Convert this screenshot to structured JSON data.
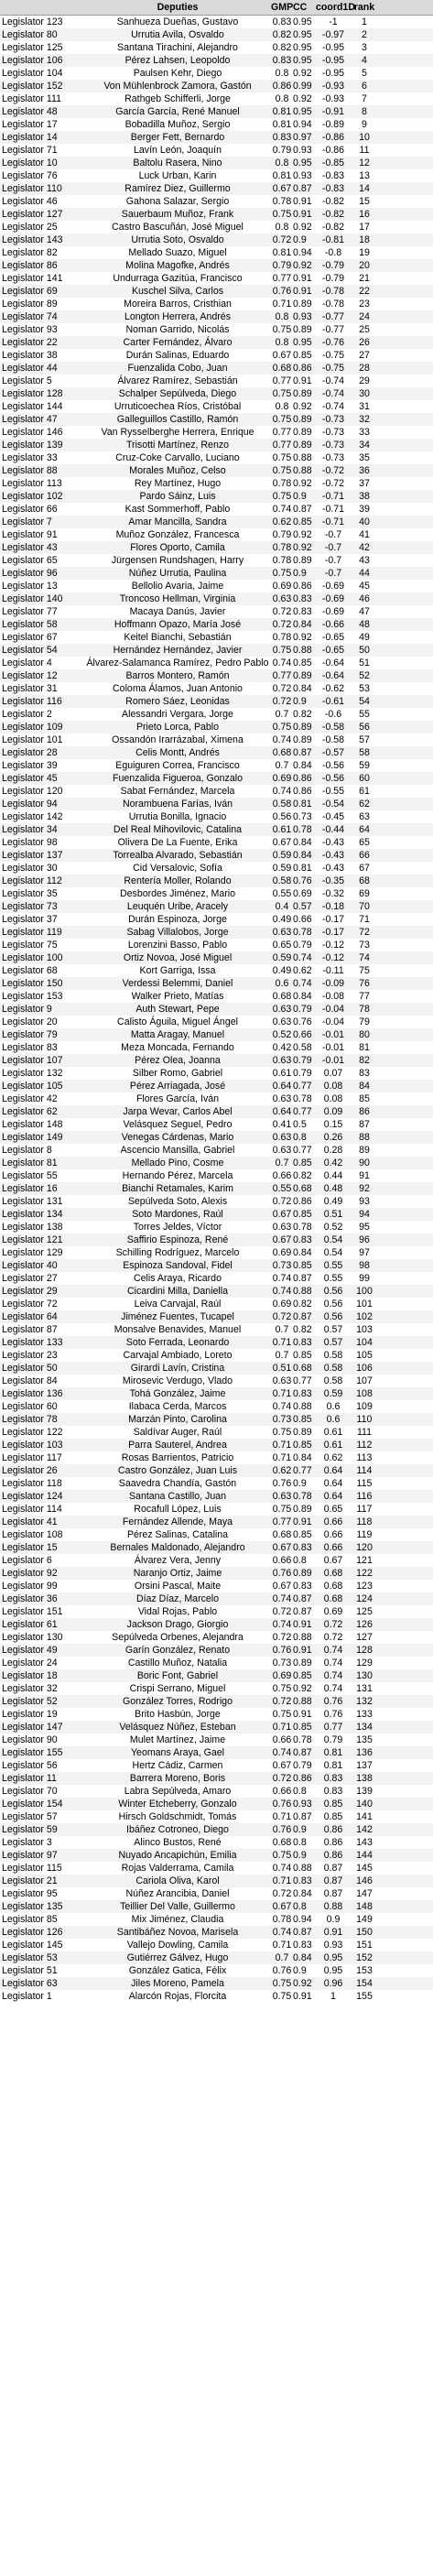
{
  "columns": [
    "",
    "Deputies",
    "GMP",
    "CC",
    "coord1D",
    "rank"
  ],
  "rows": [
    [
      "Legislator 123",
      "Sanhueza Dueñas, Gustavo",
      "0.83",
      "0.95",
      "-1",
      "1"
    ],
    [
      "Legislator 80",
      "Urrutia Avila, Osvaldo",
      "0.82",
      "0.95",
      "-0.97",
      "2"
    ],
    [
      "Legislator 125",
      "Santana Tirachini, Alejandro",
      "0.82",
      "0.95",
      "-0.95",
      "3"
    ],
    [
      "Legislator 106",
      "Pérez Lahsen, Leopoldo",
      "0.83",
      "0.95",
      "-0.95",
      "4"
    ],
    [
      "Legislator 104",
      "Paulsen Kehr, Diego",
      "0.8",
      "0.92",
      "-0.95",
      "5"
    ],
    [
      "Legislator 152",
      "Von Mühlenbrock Zamora, Gastón",
      "0.86",
      "0.99",
      "-0.93",
      "6"
    ],
    [
      "Legislator 111",
      "Rathgeb Schifferli, Jorge",
      "0.8",
      "0.92",
      "-0.93",
      "7"
    ],
    [
      "Legislator 48",
      "García García, René Manuel",
      "0.81",
      "0.95",
      "-0.91",
      "8"
    ],
    [
      "Legislator 17",
      "Bobadilla Muñoz, Sergio",
      "0.81",
      "0.94",
      "-0.89",
      "9"
    ],
    [
      "Legislator 14",
      "Berger Fett, Bernardo",
      "0.83",
      "0.97",
      "-0.86",
      "10"
    ],
    [
      "Legislator 71",
      "Lavín León, Joaquín",
      "0.79",
      "0.93",
      "-0.86",
      "11"
    ],
    [
      "Legislator 10",
      "Baltolu Rasera, Nino",
      "0.8",
      "0.95",
      "-0.85",
      "12"
    ],
    [
      "Legislator 76",
      "Luck Urban, Karin",
      "0.81",
      "0.93",
      "-0.83",
      "13"
    ],
    [
      "Legislator 110",
      "Ramírez Diez, Guillermo",
      "0.67",
      "0.87",
      "-0.83",
      "14"
    ],
    [
      "Legislator 46",
      "Gahona Salazar, Sergio",
      "0.78",
      "0.91",
      "-0.82",
      "15"
    ],
    [
      "Legislator 127",
      "Sauerbaum Muñoz, Frank",
      "0.75",
      "0.91",
      "-0.82",
      "16"
    ],
    [
      "Legislator 25",
      "Castro Bascuñán, José Miguel",
      "0.8",
      "0.92",
      "-0.82",
      "17"
    ],
    [
      "Legislator 143",
      "Urrutia Soto, Osvaldo",
      "0.72",
      "0.9",
      "-0.81",
      "18"
    ],
    [
      "Legislator 82",
      "Mellado Suazo, Miguel",
      "0.81",
      "0.94",
      "-0.8",
      "19"
    ],
    [
      "Legislator 86",
      "Molina Magofke, Andrés",
      "0.79",
      "0.92",
      "-0.79",
      "20"
    ],
    [
      "Legislator 141",
      "Undurraga Gazitúa, Francisco",
      "0.77",
      "0.91",
      "-0.79",
      "21"
    ],
    [
      "Legislator 69",
      "Kuschel Silva, Carlos",
      "0.76",
      "0.91",
      "-0.78",
      "22"
    ],
    [
      "Legislator 89",
      "Moreira Barros, Cristhian",
      "0.71",
      "0.89",
      "-0.78",
      "23"
    ],
    [
      "Legislator 74",
      "Longton Herrera, Andrés",
      "0.8",
      "0.93",
      "-0.77",
      "24"
    ],
    [
      "Legislator 93",
      "Noman Garrido, Nicolás",
      "0.75",
      "0.89",
      "-0.77",
      "25"
    ],
    [
      "Legislator 22",
      "Carter Fernández, Álvaro",
      "0.8",
      "0.95",
      "-0.76",
      "26"
    ],
    [
      "Legislator 38",
      "Durán Salinas, Eduardo",
      "0.67",
      "0.85",
      "-0.75",
      "27"
    ],
    [
      "Legislator 44",
      "Fuenzalida Cobo, Juan",
      "0.68",
      "0.86",
      "-0.75",
      "28"
    ],
    [
      "Legislator 5",
      "Álvarez Ramírez, Sebastián",
      "0.77",
      "0.91",
      "-0.74",
      "29"
    ],
    [
      "Legislator 128",
      "Schalper Sepúlveda, Diego",
      "0.75",
      "0.89",
      "-0.74",
      "30"
    ],
    [
      "Legislator 144",
      "Urruticoechea Ríos, Cristóbal",
      "0.8",
      "0.92",
      "-0.74",
      "31"
    ],
    [
      "Legislator 47",
      "Galleguillos Castillo, Ramón",
      "0.75",
      "0.89",
      "-0.73",
      "32"
    ],
    [
      "Legislator 146",
      "Van Rysselberghe Herrera, Enrique",
      "0.77",
      "0.89",
      "-0.73",
      "33"
    ],
    [
      "Legislator 139",
      "Trisotti Martínez, Renzo",
      "0.77",
      "0.89",
      "-0.73",
      "34"
    ],
    [
      "Legislator 33",
      "Cruz-Coke Carvallo, Luciano",
      "0.75",
      "0.88",
      "-0.73",
      "35"
    ],
    [
      "Legislator 88",
      "Morales Muñoz, Celso",
      "0.75",
      "0.88",
      "-0.72",
      "36"
    ],
    [
      "Legislator 113",
      "Rey Martínez, Hugo",
      "0.78",
      "0.92",
      "-0.72",
      "37"
    ],
    [
      "Legislator 102",
      "Pardo Sáinz, Luis",
      "0.75",
      "0.9",
      "-0.71",
      "38"
    ],
    [
      "Legislator 66",
      "Kast Sommerhoff, Pablo",
      "0.74",
      "0.87",
      "-0.71",
      "39"
    ],
    [
      "Legislator 7",
      "Amar Mancilla, Sandra",
      "0.62",
      "0.85",
      "-0.71",
      "40"
    ],
    [
      "Legislator 91",
      "Muñoz González, Francesca",
      "0.79",
      "0.92",
      "-0.7",
      "41"
    ],
    [
      "Legislator 43",
      "Flores Oporto, Camila",
      "0.78",
      "0.92",
      "-0.7",
      "42"
    ],
    [
      "Legislator 65",
      "Jürgensen Rundshagen, Harry",
      "0.78",
      "0.89",
      "-0.7",
      "43"
    ],
    [
      "Legislator 96",
      "Núñez Urrutia, Paulina",
      "0.75",
      "0.9",
      "-0.7",
      "44"
    ],
    [
      "Legislator 13",
      "Bellolio Avaria, Jaime",
      "0.69",
      "0.86",
      "-0.69",
      "45"
    ],
    [
      "Legislator 140",
      "Troncoso Hellman, Virginia",
      "0.63",
      "0.83",
      "-0.69",
      "46"
    ],
    [
      "Legislator 77",
      "Macaya Danús, Javier",
      "0.72",
      "0.83",
      "-0.69",
      "47"
    ],
    [
      "Legislator 58",
      "Hoffmann Opazo, María José",
      "0.72",
      "0.84",
      "-0.66",
      "48"
    ],
    [
      "Legislator 67",
      "Keitel Bianchi, Sebastián",
      "0.78",
      "0.92",
      "-0.65",
      "49"
    ],
    [
      "Legislator 54",
      "Hernández Hernández, Javier",
      "0.75",
      "0.88",
      "-0.65",
      "50"
    ],
    [
      "Legislator 4",
      "Álvarez-Salamanca Ramírez, Pedro Pablo",
      "0.74",
      "0.85",
      "-0.64",
      "51"
    ],
    [
      "Legislator 12",
      "Barros Montero, Ramón",
      "0.77",
      "0.89",
      "-0.64",
      "52"
    ],
    [
      "Legislator 31",
      "Coloma Álamos, Juan Antonio",
      "0.72",
      "0.84",
      "-0.62",
      "53"
    ],
    [
      "Legislator 116",
      "Romero Sáez, Leonidas",
      "0.72",
      "0.9",
      "-0.61",
      "54"
    ],
    [
      "Legislator 2",
      "Alessandri Vergara, Jorge",
      "0.7",
      "0.82",
      "-0.6",
      "55"
    ],
    [
      "Legislator 109",
      "Prieto Lorca, Pablo",
      "0.75",
      "0.89",
      "-0.58",
      "56"
    ],
    [
      "Legislator 101",
      "Ossandón Irarrázabal, Ximena",
      "0.74",
      "0.89",
      "-0.58",
      "57"
    ],
    [
      "Legislator 28",
      "Celis Montt, Andrés",
      "0.68",
      "0.87",
      "-0.57",
      "58"
    ],
    [
      "Legislator 39",
      "Eguiguren Correa, Francisco",
      "0.7",
      "0.84",
      "-0.56",
      "59"
    ],
    [
      "Legislator 45",
      "Fuenzalida Figueroa, Gonzalo",
      "0.69",
      "0.86",
      "-0.56",
      "60"
    ],
    [
      "Legislator 120",
      "Sabat Fernández, Marcela",
      "0.74",
      "0.86",
      "-0.55",
      "61"
    ],
    [
      "Legislator 94",
      "Norambuena Farías, Iván",
      "0.58",
      "0.81",
      "-0.54",
      "62"
    ],
    [
      "Legislator 142",
      "Urrutia Bonilla, Ignacio",
      "0.56",
      "0.73",
      "-0.45",
      "63"
    ],
    [
      "Legislator 34",
      "Del Real Mihovilovic, Catalina",
      "0.61",
      "0.78",
      "-0.44",
      "64"
    ],
    [
      "Legislator 98",
      "Olivera De La Fuente, Erika",
      "0.67",
      "0.84",
      "-0.43",
      "65"
    ],
    [
      "Legislator 137",
      "Torrealba Alvarado, Sebastián",
      "0.59",
      "0.84",
      "-0.43",
      "66"
    ],
    [
      "Legislator 30",
      "Cid Versalovic, Sofía",
      "0.59",
      "0.81",
      "-0.43",
      "67"
    ],
    [
      "Legislator 112",
      "Rentería Moller, Rolando",
      "0.58",
      "0.76",
      "-0.35",
      "68"
    ],
    [
      "Legislator 35",
      "Desbordes Jiménez, Mario",
      "0.55",
      "0.69",
      "-0.32",
      "69"
    ],
    [
      "Legislator 73",
      "Leuquén Uribe, Aracely",
      "0.4",
      "0.57",
      "-0.18",
      "70"
    ],
    [
      "Legislator 37",
      "Durán Espinoza, Jorge",
      "0.49",
      "0.66",
      "-0.17",
      "71"
    ],
    [
      "Legislator 119",
      "Sabag Villalobos, Jorge",
      "0.63",
      "0.78",
      "-0.17",
      "72"
    ],
    [
      "Legislator 75",
      "Lorenzini Basso, Pablo",
      "0.65",
      "0.79",
      "-0.12",
      "73"
    ],
    [
      "Legislator 100",
      "Ortiz Novoa, José Miguel",
      "0.59",
      "0.74",
      "-0.12",
      "74"
    ],
    [
      "Legislator 68",
      "Kort Garriga, Issa",
      "0.49",
      "0.62",
      "-0.11",
      "75"
    ],
    [
      "Legislator 150",
      "Verdessi Belemmi, Daniel",
      "0.6",
      "0.74",
      "-0.09",
      "76"
    ],
    [
      "Legislator 153",
      "Walker Prieto, Matías",
      "0.68",
      "0.84",
      "-0.08",
      "77"
    ],
    [
      "Legislator 9",
      "Auth Stewart, Pepe",
      "0.63",
      "0.79",
      "-0.04",
      "78"
    ],
    [
      "Legislator 20",
      "Calisto Águila, Miguel Ángel",
      "0.63",
      "0.76",
      "-0.04",
      "79"
    ],
    [
      "Legislator 79",
      "Matta Aragay, Manuel",
      "0.52",
      "0.66",
      "-0.01",
      "80"
    ],
    [
      "Legislator 83",
      "Meza Moncada, Fernando",
      "0.42",
      "0.58",
      "-0.01",
      "81"
    ],
    [
      "Legislator 107",
      "Pérez Olea, Joanna",
      "0.63",
      "0.79",
      "-0.01",
      "82"
    ],
    [
      "Legislator 132",
      "Silber Romo, Gabriel",
      "0.61",
      "0.79",
      "0.07",
      "83"
    ],
    [
      "Legislator 105",
      "Pérez Arriagada, José",
      "0.64",
      "0.77",
      "0.08",
      "84"
    ],
    [
      "Legislator 42",
      "Flores García, Iván",
      "0.63",
      "0.78",
      "0.08",
      "85"
    ],
    [
      "Legislator 62",
      "Jarpa Wevar, Carlos Abel",
      "0.64",
      "0.77",
      "0.09",
      "86"
    ],
    [
      "Legislator 148",
      "Velásquez Seguel, Pedro",
      "0.41",
      "0.5",
      "0.15",
      "87"
    ],
    [
      "Legislator 149",
      "Venegas Cárdenas, Mario",
      "0.63",
      "0.8",
      "0.26",
      "88"
    ],
    [
      "Legislator 8",
      "Ascencio Mansilla, Gabriel",
      "0.63",
      "0.77",
      "0.28",
      "89"
    ],
    [
      "Legislator 81",
      "Mellado Pino, Cosme",
      "0.7",
      "0.85",
      "0.42",
      "90"
    ],
    [
      "Legislator 55",
      "Hernando Pérez, Marcela",
      "0.66",
      "0.82",
      "0.44",
      "91"
    ],
    [
      "Legislator 16",
      "Bianchi Retamales, Karim",
      "0.55",
      "0.68",
      "0.48",
      "92"
    ],
    [
      "Legislator 131",
      "Sepúlveda Soto, Alexis",
      "0.72",
      "0.86",
      "0.49",
      "93"
    ],
    [
      "Legislator 134",
      "Soto Mardones, Raúl",
      "0.67",
      "0.85",
      "0.51",
      "94"
    ],
    [
      "Legislator 138",
      "Torres Jeldes, Víctor",
      "0.63",
      "0.78",
      "0.52",
      "95"
    ],
    [
      "Legislator 121",
      "Saffirio Espinoza, René",
      "0.67",
      "0.83",
      "0.54",
      "96"
    ],
    [
      "Legislator 129",
      "Schilling Rodríguez, Marcelo",
      "0.69",
      "0.84",
      "0.54",
      "97"
    ],
    [
      "Legislator 40",
      "Espinoza Sandoval, Fidel",
      "0.73",
      "0.85",
      "0.55",
      "98"
    ],
    [
      "Legislator 27",
      "Celis Araya, Ricardo",
      "0.74",
      "0.87",
      "0.55",
      "99"
    ],
    [
      "Legislator 29",
      "Cicardini Milla, Daniella",
      "0.74",
      "0.88",
      "0.56",
      "100"
    ],
    [
      "Legislator 72",
      "Leiva Carvajal, Raúl",
      "0.69",
      "0.82",
      "0.56",
      "101"
    ],
    [
      "Legislator 64",
      "Jiménez Fuentes, Tucapel",
      "0.72",
      "0.87",
      "0.56",
      "102"
    ],
    [
      "Legislator 87",
      "Monsalve Benavides, Manuel",
      "0.7",
      "0.82",
      "0.57",
      "103"
    ],
    [
      "Legislator 133",
      "Soto Ferrada, Leonardo",
      "0.71",
      "0.83",
      "0.57",
      "104"
    ],
    [
      "Legislator 23",
      "Carvajal Ambiado, Loreto",
      "0.7",
      "0.85",
      "0.58",
      "105"
    ],
    [
      "Legislator 50",
      "Girardi Lavín, Cristina",
      "0.51",
      "0.68",
      "0.58",
      "106"
    ],
    [
      "Legislator 84",
      "Mirosevic Verdugo, Vlado",
      "0.63",
      "0.77",
      "0.58",
      "107"
    ],
    [
      "Legislator 136",
      "Tohá González, Jaime",
      "0.71",
      "0.83",
      "0.59",
      "108"
    ],
    [
      "Legislator 60",
      "Ilabaca Cerda, Marcos",
      "0.74",
      "0.88",
      "0.6",
      "109"
    ],
    [
      "Legislator 78",
      "Marzán Pinto, Carolina",
      "0.73",
      "0.85",
      "0.6",
      "110"
    ],
    [
      "Legislator 122",
      "Saldívar Auger, Raúl",
      "0.75",
      "0.89",
      "0.61",
      "111"
    ],
    [
      "Legislator 103",
      "Parra Sauterel, Andrea",
      "0.71",
      "0.85",
      "0.61",
      "112"
    ],
    [
      "Legislator 117",
      "Rosas Barrientos, Patricio",
      "0.71",
      "0.84",
      "0.62",
      "113"
    ],
    [
      "Legislator 26",
      "Castro González, Juan Luis",
      "0.62",
      "0.77",
      "0.64",
      "114"
    ],
    [
      "Legislator 118",
      "Saavedra Chandía, Gastón",
      "0.76",
      "0.9",
      "0.64",
      "115"
    ],
    [
      "Legislator 124",
      "Santana Castillo, Juan",
      "0.63",
      "0.78",
      "0.64",
      "116"
    ],
    [
      "Legislator 114",
      "Rocafull López, Luis",
      "0.75",
      "0.89",
      "0.65",
      "117"
    ],
    [
      "Legislator 41",
      "Fernández Allende, Maya",
      "0.77",
      "0.91",
      "0.66",
      "118"
    ],
    [
      "Legislator 108",
      "Pérez Salinas, Catalina",
      "0.68",
      "0.85",
      "0.66",
      "119"
    ],
    [
      "Legislator 15",
      "Bernales Maldonado, Alejandro",
      "0.67",
      "0.83",
      "0.66",
      "120"
    ],
    [
      "Legislator 6",
      "Álvarez Vera, Jenny",
      "0.66",
      "0.8",
      "0.67",
      "121"
    ],
    [
      "Legislator 92",
      "Naranjo Ortiz, Jaime",
      "0.76",
      "0.89",
      "0.68",
      "122"
    ],
    [
      "Legislator 99",
      "Orsini Pascal, Maite",
      "0.67",
      "0.83",
      "0.68",
      "123"
    ],
    [
      "Legislator 36",
      "Díaz Díaz, Marcelo",
      "0.74",
      "0.87",
      "0.68",
      "124"
    ],
    [
      "Legislator 151",
      "Vidal Rojas, Pablo",
      "0.72",
      "0.87",
      "0.69",
      "125"
    ],
    [
      "Legislator 61",
      "Jackson Drago, Giorgio",
      "0.74",
      "0.91",
      "0.72",
      "126"
    ],
    [
      "Legislator 130",
      "Sepúlveda Orbenes, Alejandra",
      "0.72",
      "0.88",
      "0.72",
      "127"
    ],
    [
      "Legislator 49",
      "Garín González, Renato",
      "0.76",
      "0.91",
      "0.74",
      "128"
    ],
    [
      "Legislator 24",
      "Castillo Muñoz, Natalia",
      "0.73",
      "0.89",
      "0.74",
      "129"
    ],
    [
      "Legislator 18",
      "Boric Font, Gabriel",
      "0.69",
      "0.85",
      "0.74",
      "130"
    ],
    [
      "Legislator 32",
      "Crispi Serrano, Miguel",
      "0.75",
      "0.92",
      "0.74",
      "131"
    ],
    [
      "Legislator 52",
      "González Torres, Rodrigo",
      "0.72",
      "0.88",
      "0.76",
      "132"
    ],
    [
      "Legislator 19",
      "Brito Hasbún, Jorge",
      "0.75",
      "0.91",
      "0.76",
      "133"
    ],
    [
      "Legislator 147",
      "Velásquez Núñez, Esteban",
      "0.71",
      "0.85",
      "0.77",
      "134"
    ],
    [
      "Legislator 90",
      "Mulet Martínez, Jaime",
      "0.66",
      "0.78",
      "0.79",
      "135"
    ],
    [
      "Legislator 155",
      "Yeomans Araya, Gael",
      "0.74",
      "0.87",
      "0.81",
      "136"
    ],
    [
      "Legislator 56",
      "Hertz Cádiz, Carmen",
      "0.67",
      "0.79",
      "0.81",
      "137"
    ],
    [
      "Legislator 11",
      "Barrera Moreno, Boris",
      "0.72",
      "0.86",
      "0.83",
      "138"
    ],
    [
      "Legislator 70",
      "Labra Sepúlveda, Amaro",
      "0.66",
      "0.8",
      "0.83",
      "139"
    ],
    [
      "Legislator 154",
      "Winter Etcheberry, Gonzalo",
      "0.76",
      "0.93",
      "0.85",
      "140"
    ],
    [
      "Legislator 57",
      "Hirsch Goldschmidt, Tomás",
      "0.71",
      "0.87",
      "0.85",
      "141"
    ],
    [
      "Legislator 59",
      "Ibáñez Cotroneo, Diego",
      "0.76",
      "0.9",
      "0.86",
      "142"
    ],
    [
      "Legislator 3",
      "Alinco Bustos, René",
      "0.68",
      "0.8",
      "0.86",
      "143"
    ],
    [
      "Legislator 97",
      "Nuyado Ancapichún, Emilia",
      "0.75",
      "0.9",
      "0.86",
      "144"
    ],
    [
      "Legislator 115",
      "Rojas Valderrama, Camila",
      "0.74",
      "0.88",
      "0.87",
      "145"
    ],
    [
      "Legislator 21",
      "Cariola Oliva, Karol",
      "0.71",
      "0.83",
      "0.87",
      "146"
    ],
    [
      "Legislator 95",
      "Núñez Arancibia, Daniel",
      "0.72",
      "0.84",
      "0.87",
      "147"
    ],
    [
      "Legislator 135",
      "Teillier Del Valle, Guillermo",
      "0.67",
      "0.8",
      "0.88",
      "148"
    ],
    [
      "Legislator 85",
      "Mix Jiménez, Claudia",
      "0.78",
      "0.94",
      "0.9",
      "149"
    ],
    [
      "Legislator 126",
      "Santibáñez Novoa, Marisela",
      "0.74",
      "0.87",
      "0.91",
      "150"
    ],
    [
      "Legislator 145",
      "Vallejo Dowling, Camila",
      "0.71",
      "0.83",
      "0.93",
      "151"
    ],
    [
      "Legislator 53",
      "Gutiérrez Gálvez, Hugo",
      "0.7",
      "0.84",
      "0.95",
      "152"
    ],
    [
      "Legislator 51",
      "González Gatica, Félix",
      "0.76",
      "0.9",
      "0.95",
      "153"
    ],
    [
      "Legislator 63",
      "Jiles Moreno, Pamela",
      "0.75",
      "0.92",
      "0.96",
      "154"
    ],
    [
      "Legislator 1",
      "Alarcón Rojas, Florcita",
      "0.75",
      "0.91",
      "1",
      "155"
    ]
  ]
}
